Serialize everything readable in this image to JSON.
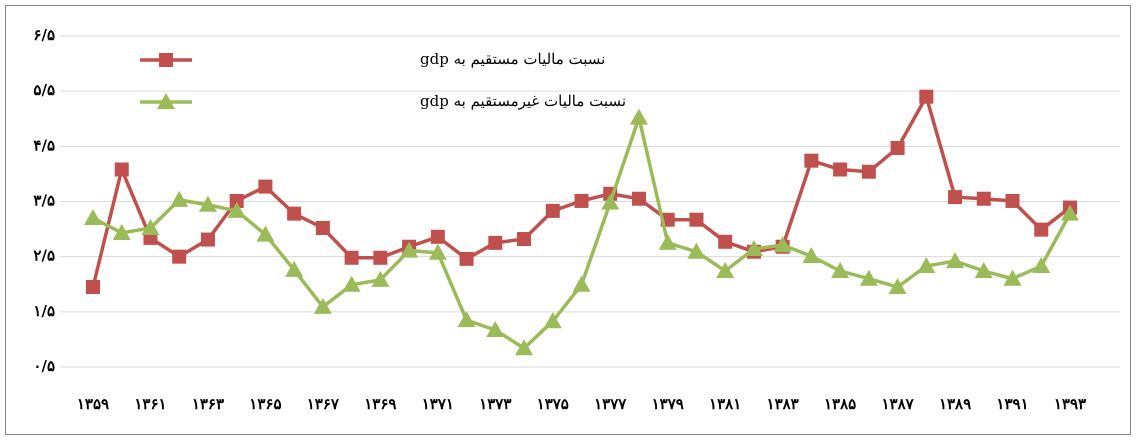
{
  "chart_data": {
    "type": "line",
    "categories": [
      "۱۳۵۹",
      null,
      "۱۳۶۱",
      null,
      "۱۳۶۳",
      null,
      "۱۳۶۵",
      null,
      "۱۳۶۷",
      null,
      "۱۳۶۹",
      null,
      "۱۳۷۱",
      null,
      "۱۳۷۳",
      null,
      "۱۳۷۵",
      null,
      "۱۳۷۷",
      null,
      "۱۳۷۹",
      null,
      "۱۳۸۱",
      null,
      "۱۳۸۳",
      null,
      "۱۳۸۵",
      null,
      "۱۳۸۷",
      null,
      "۱۳۸۹",
      null,
      "۱۳۹۱",
      null,
      "۱۳۹۳"
    ],
    "series": [
      {
        "name": "نسبت مالیات مستقیم به gdp",
        "color": "#c0504d",
        "marker": "square",
        "values": [
          1.95,
          4.08,
          2.84,
          2.5,
          2.81,
          3.51,
          3.77,
          3.28,
          3.02,
          2.48,
          2.48,
          2.68,
          2.86,
          2.46,
          2.75,
          2.82,
          3.33,
          3.51,
          3.64,
          3.55,
          3.17,
          3.17,
          2.77,
          2.59,
          2.68,
          4.24,
          4.08,
          4.04,
          4.47,
          5.4,
          3.58,
          3.55,
          3.51,
          2.99,
          3.39
        ]
      },
      {
        "name": "نسبت مالیات غیرمستقیم به gdp",
        "color": "#9bbb59",
        "marker": "triangle",
        "values": [
          3.2,
          2.93,
          3.02,
          3.53,
          3.44,
          3.33,
          2.9,
          2.26,
          1.59,
          1.99,
          2.08,
          2.61,
          2.57,
          1.35,
          1.17,
          0.84,
          1.33,
          1.99,
          3.48,
          5.02,
          2.75,
          2.59,
          2.24,
          2.64,
          2.71,
          2.51,
          2.24,
          2.1,
          1.95,
          2.33,
          2.42,
          2.24,
          2.1,
          2.33,
          3.28
        ]
      }
    ],
    "ylim": [
      0.5,
      6.5
    ],
    "yticks": [
      {
        "value": 0.5,
        "label": "۰/۵"
      },
      {
        "value": 1.5,
        "label": "۱/۵"
      },
      {
        "value": 2.5,
        "label": "۲/۵"
      },
      {
        "value": 3.5,
        "label": "۳/۵"
      },
      {
        "value": 4.5,
        "label": "۴/۵"
      },
      {
        "value": 5.5,
        "label": "۵/۵"
      },
      {
        "value": 6.5,
        "label": "۶/۵"
      }
    ],
    "grid": true,
    "legend": "top-left"
  }
}
